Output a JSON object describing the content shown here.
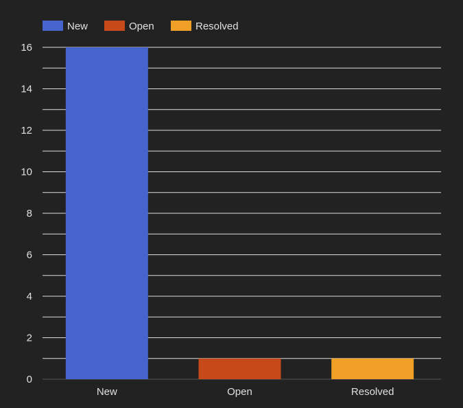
{
  "chart_data": {
    "type": "bar",
    "categories": [
      "New",
      "Open",
      "Resolved"
    ],
    "values": [
      16,
      1,
      1
    ],
    "series": [
      {
        "name": "New",
        "values": [
          16,
          0,
          0
        ]
      },
      {
        "name": "Open",
        "values": [
          0,
          1,
          0
        ]
      },
      {
        "name": "Resolved",
        "values": [
          0,
          0,
          1
        ]
      }
    ],
    "colors": [
      "#4763cc",
      "#c74a1a",
      "#f0a026"
    ],
    "ylim": [
      0,
      16
    ],
    "yticks": [
      "0",
      "2",
      "4",
      "6",
      "8",
      "10",
      "12",
      "14",
      "16"
    ],
    "grid": true,
    "legend_position": "top-left",
    "legend": [
      "New",
      "Open",
      "Resolved"
    ],
    "background": "#222222",
    "gridline_color": "#ffffff",
    "text_color": "#e0e0e0"
  }
}
